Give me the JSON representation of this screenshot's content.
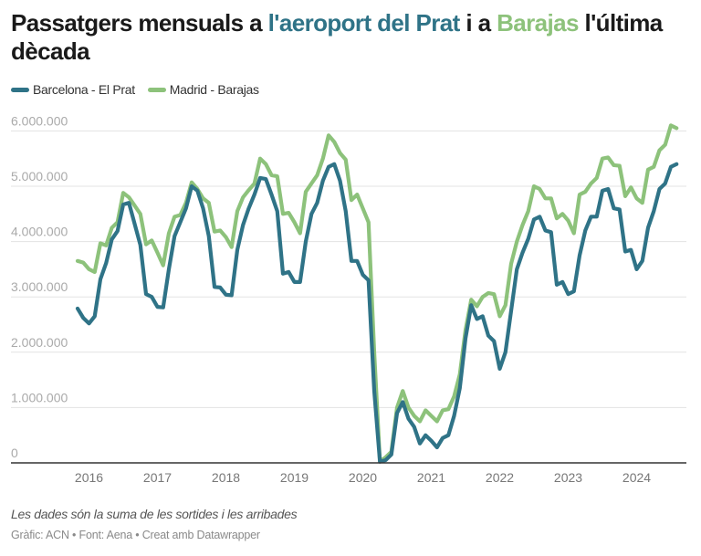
{
  "title": {
    "part1": "Passatgers mensuals a ",
    "bcn": "l'aeroport del Prat",
    "part2": " i a ",
    "mad": "Barajas",
    "part3": " l'última dècada"
  },
  "colors": {
    "bcn": "#2f7387",
    "mad": "#8dc27b"
  },
  "note": "Les dades són la suma de les sortides i les arribades",
  "credit": "Gràfic: ACN • Font: Aena • Creat amb Datawrapper",
  "chart_data": {
    "type": "line",
    "title": "Passatgers mensuals a l'aeroport del Prat i a Barajas l'última dècada",
    "xlabel": "",
    "ylabel": "",
    "x_start": "2015-11",
    "x_end": "2024-08",
    "x_step": "month",
    "unit": "millions of passengers",
    "ylim": [
      0,
      6
    ],
    "y_ticks": [
      0,
      1,
      2,
      3,
      4,
      5,
      6
    ],
    "y_tick_labels": [
      "0",
      "1.000.000",
      "2.000.000",
      "3.000.000",
      "4.000.000",
      "5.000.000",
      "6.000.000"
    ],
    "x_ticks": [
      "2016",
      "2017",
      "2018",
      "2019",
      "2020",
      "2021",
      "2022",
      "2023",
      "2024"
    ],
    "grid": true,
    "legend": "top-left",
    "series": [
      {
        "name": "Barcelona - El Prat",
        "color": "#2f7387",
        "values": [
          2.79,
          2.62,
          2.52,
          2.65,
          3.32,
          3.61,
          4.04,
          4.19,
          4.67,
          4.7,
          4.32,
          3.94,
          3.05,
          3.0,
          2.82,
          2.81,
          3.5,
          4.1,
          4.35,
          4.6,
          5.0,
          4.92,
          4.6,
          4.1,
          3.18,
          3.17,
          3.04,
          3.03,
          3.85,
          4.3,
          4.6,
          4.85,
          5.15,
          5.13,
          4.85,
          4.55,
          3.42,
          3.45,
          3.27,
          3.27,
          4.0,
          4.5,
          4.7,
          5.1,
          5.35,
          5.4,
          5.1,
          4.55,
          3.65,
          3.65,
          3.4,
          3.3,
          1.3,
          0.02,
          0.05,
          0.15,
          0.9,
          1.1,
          0.8,
          0.65,
          0.35,
          0.5,
          0.4,
          0.28,
          0.45,
          0.5,
          0.85,
          1.35,
          2.25,
          2.85,
          2.6,
          2.65,
          2.3,
          2.2,
          1.7,
          2.0,
          2.75,
          3.5,
          3.8,
          4.05,
          4.4,
          4.45,
          4.2,
          4.17,
          3.22,
          3.27,
          3.05,
          3.1,
          3.75,
          4.2,
          4.45,
          4.45,
          4.92,
          4.95,
          4.6,
          4.58,
          3.82,
          3.85,
          3.5,
          3.65,
          4.25,
          4.55,
          4.95,
          5.05,
          5.35,
          5.4
        ]
      },
      {
        "name": "Madrid - Barajas",
        "color": "#8dc27b",
        "values": [
          3.65,
          3.62,
          3.5,
          3.45,
          3.97,
          3.93,
          4.25,
          4.35,
          4.88,
          4.8,
          4.65,
          4.5,
          3.95,
          4.02,
          3.8,
          3.57,
          4.15,
          4.45,
          4.48,
          4.7,
          5.07,
          4.95,
          4.78,
          4.7,
          4.18,
          4.2,
          4.08,
          3.9,
          4.55,
          4.8,
          4.93,
          5.05,
          5.5,
          5.4,
          5.2,
          5.18,
          4.5,
          4.52,
          4.35,
          4.15,
          4.9,
          5.05,
          5.2,
          5.5,
          5.92,
          5.8,
          5.6,
          5.48,
          4.75,
          4.85,
          4.6,
          4.35,
          2.0,
          0.03,
          0.1,
          0.2,
          1.0,
          1.3,
          1.0,
          0.85,
          0.75,
          0.95,
          0.85,
          0.75,
          0.95,
          0.97,
          1.2,
          1.6,
          2.4,
          2.95,
          2.83,
          3.0,
          3.07,
          3.05,
          2.65,
          2.85,
          3.6,
          4.0,
          4.3,
          4.55,
          5.0,
          4.95,
          4.78,
          4.78,
          4.42,
          4.5,
          4.38,
          4.15,
          4.85,
          4.9,
          5.05,
          5.15,
          5.5,
          5.52,
          5.38,
          5.37,
          4.82,
          4.98,
          4.78,
          4.7,
          5.3,
          5.35,
          5.65,
          5.75,
          6.1,
          6.05
        ]
      }
    ]
  }
}
